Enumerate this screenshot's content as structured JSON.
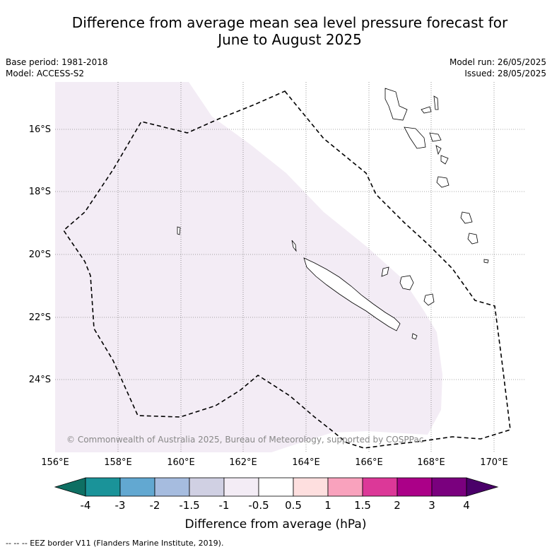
{
  "title_line1": "Difference from average mean sea level pressure forecast for",
  "title_line2": "June to August 2025",
  "base_period": "Base period: 1981-2018",
  "model": "Model: ACCESS-S2",
  "model_run": "Model run: 26/05/2025",
  "issued": "Issued: 28/05/2025",
  "copyright": "© Commonwealth of Australia 2025, Bureau of Meteorology, supported by COSPPac",
  "lat_labels": [
    "16°S",
    "18°S",
    "20°S",
    "22°S",
    "24°S"
  ],
  "lon_labels": [
    "156°E",
    "158°E",
    "160°E",
    "162°E",
    "164°E",
    "166°E",
    "168°E",
    "170°E"
  ],
  "colorbar": {
    "ticks": [
      "-4",
      "-3",
      "-2",
      "-1.5",
      "-1",
      "-0.5",
      "0.5",
      "1",
      "1.5",
      "2",
      "3",
      "4"
    ],
    "colors": [
      "#1a9399",
      "#62a8d1",
      "#a6bcdf",
      "#d0d0e3",
      "#f3ecf5",
      "#ffffff",
      "#fedfdf",
      "#f9a2bd",
      "#dc3898",
      "#ab0088",
      "#7a007e"
    ],
    "under_color": "#0e6f63",
    "over_color": "#4a0069",
    "label": "Difference from average (hPa)"
  },
  "caption": "-- -- -- EEZ border V11 (Flanders Marine Institute, 2019)."
}
